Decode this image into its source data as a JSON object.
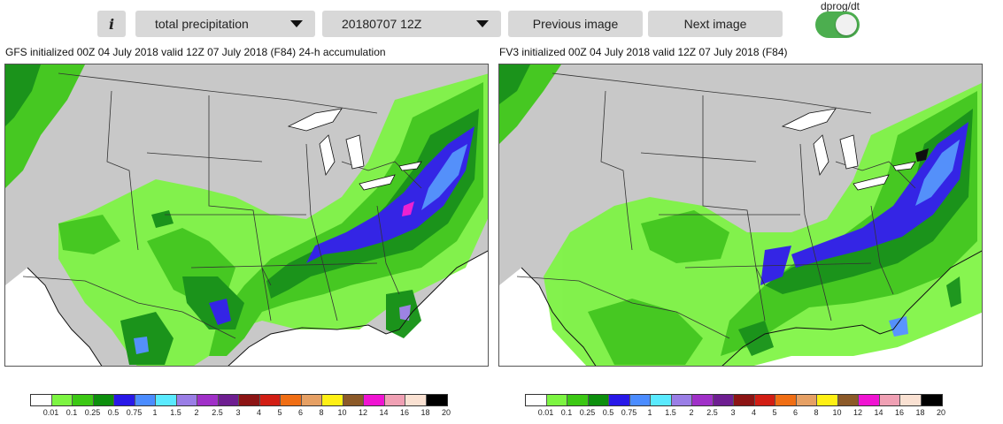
{
  "toolbar": {
    "info_label": "i",
    "field_select": "total precipitation",
    "time_select": "20180707 12Z",
    "prev_label": "Previous image",
    "next_label": "Next image",
    "toggle_label": "dprog/dt",
    "toggle_on": true
  },
  "panels": [
    {
      "title": "GFS initialized 00Z 04 July 2018 valid 12Z 07 July 2018 (F84) 24-h accumulation"
    },
    {
      "title": "FV3 initialized 00Z 04 July 2018 valid 12Z 07 July 2018 (F84)"
    }
  ],
  "colorbar": {
    "labels": [
      "0.01",
      "0.1",
      "0.25",
      "0.5",
      "0.75",
      "1",
      "1.5",
      "2",
      "2.5",
      "3",
      "4",
      "5",
      "6",
      "8",
      "10",
      "12",
      "14",
      "16",
      "18",
      "20"
    ],
    "colors": [
      "#ffffff",
      "#7df542",
      "#3cc814",
      "#0d8f0d",
      "#2818e8",
      "#4b8cff",
      "#5aeaff",
      "#9a7ee6",
      "#a030c8",
      "#6e1e91",
      "#8c1414",
      "#d21e14",
      "#f06e14",
      "#e6a064",
      "#fff014",
      "#8c5a28",
      "#f014d2",
      "#f0a0b4",
      "#fae1d2",
      "#000000"
    ]
  }
}
